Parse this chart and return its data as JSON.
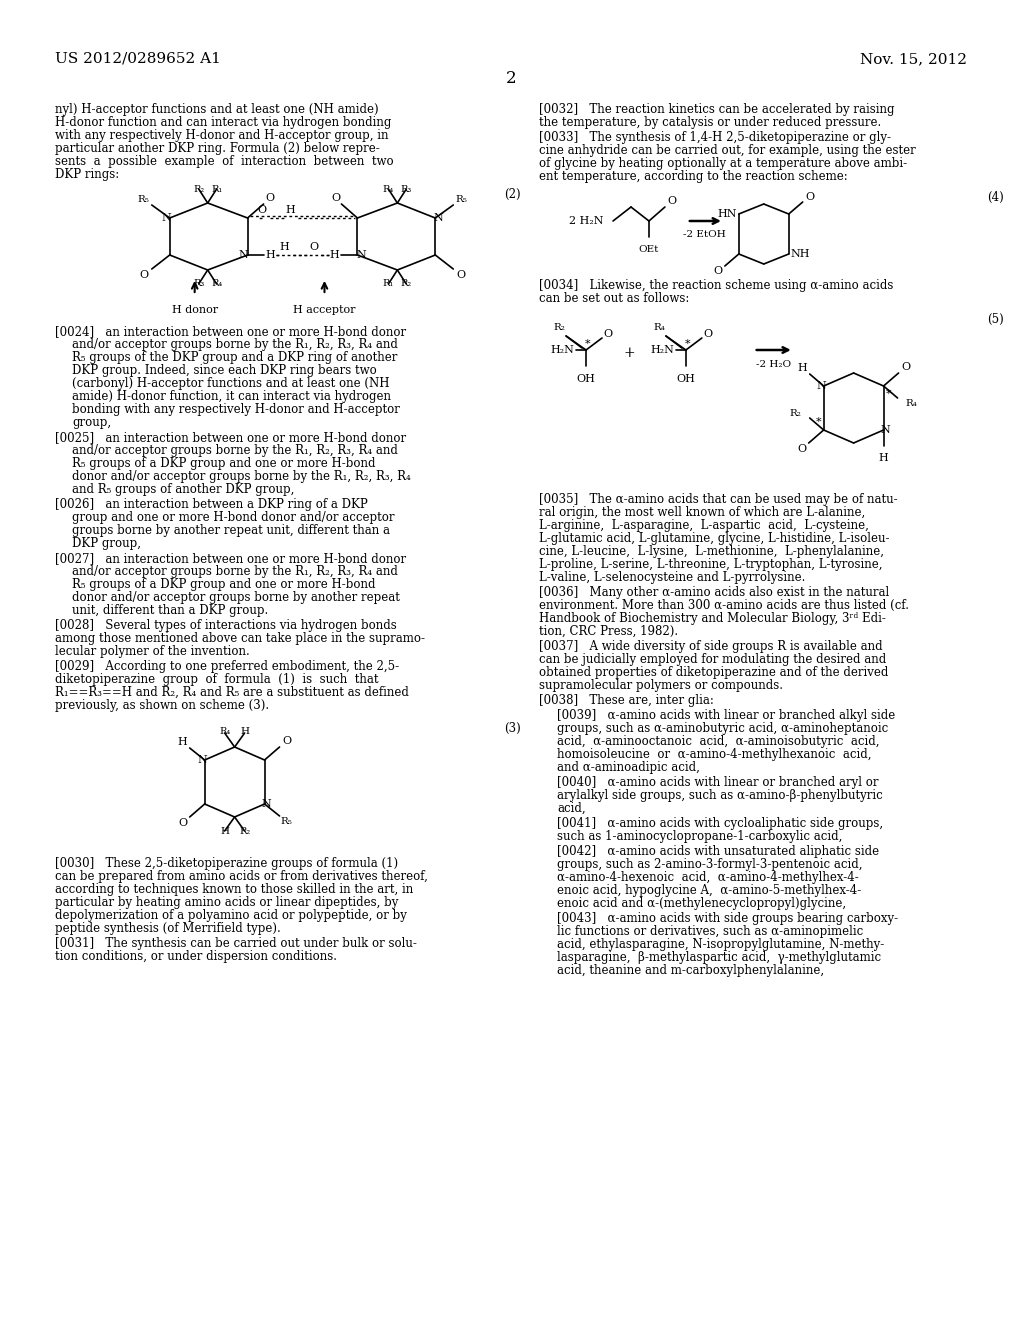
{
  "bg_color": "#ffffff",
  "header_left": "US 2012/0289652 A1",
  "header_right": "Nov. 15, 2012",
  "page_number": "2"
}
